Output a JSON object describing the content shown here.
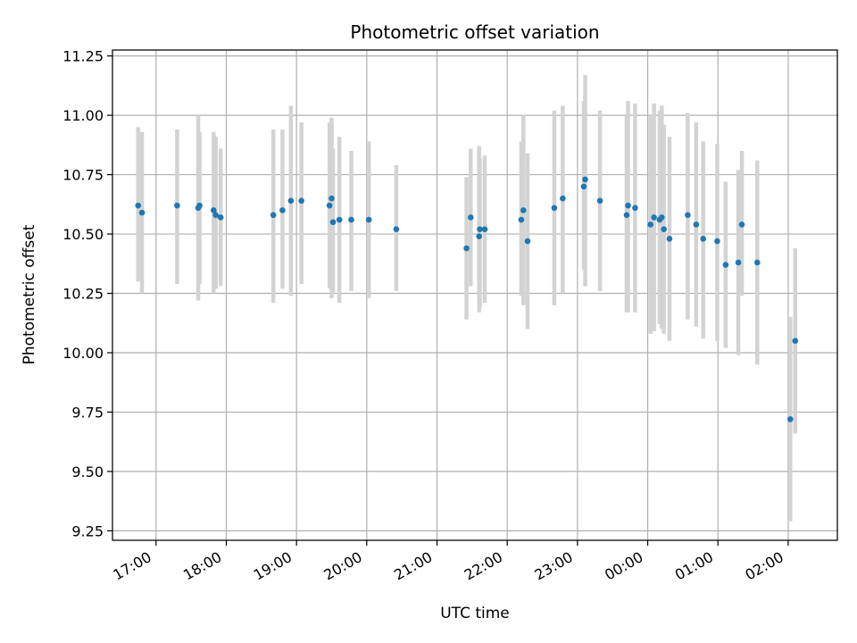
{
  "chart_data": {
    "type": "scatter",
    "title": "Photometric offset variation",
    "xlabel": "UTC time",
    "ylabel": "Photometric offset",
    "grid": true,
    "colors": {
      "point": "#1f77b4",
      "errorbar": "#d3d3d3",
      "grid": "#b0b0b0",
      "axis": "#000000"
    },
    "xlim": [
      16.38,
      26.7
    ],
    "ylim": [
      9.21,
      11.275
    ],
    "x_ticks": [
      17,
      18,
      19,
      20,
      21,
      22,
      23,
      24,
      25,
      26
    ],
    "x_tick_labels": [
      "17:00",
      "18:00",
      "19:00",
      "20:00",
      "21:00",
      "22:00",
      "23:00",
      "00:00",
      "01:00",
      "02:00"
    ],
    "y_ticks": [
      9.25,
      9.5,
      9.75,
      10.0,
      10.25,
      10.5,
      10.75,
      11.0,
      11.25
    ],
    "y_tick_labels": [
      "9.25",
      "9.50",
      "9.75",
      "10.00",
      "10.25",
      "10.50",
      "10.75",
      "11.00",
      "11.25"
    ],
    "series": [
      {
        "name": "offset",
        "x": [
          16.745,
          16.8,
          17.3,
          17.6,
          17.62,
          17.82,
          17.85,
          17.92,
          18.67,
          18.8,
          18.92,
          19.07,
          19.47,
          19.5,
          19.52,
          19.61,
          19.78,
          20.03,
          20.42,
          21.42,
          21.48,
          21.6,
          21.61,
          21.68,
          22.2,
          22.23,
          22.29,
          22.67,
          22.79,
          23.09,
          23.11,
          23.32,
          23.7,
          23.72,
          23.82,
          24.04,
          24.09,
          24.17,
          24.2,
          24.23,
          24.31,
          24.57,
          24.69,
          24.79,
          24.99,
          25.11,
          25.29,
          25.34,
          25.56,
          26.03,
          26.1
        ],
        "y": [
          10.62,
          10.59,
          10.62,
          10.61,
          10.62,
          10.6,
          10.58,
          10.57,
          10.58,
          10.6,
          10.64,
          10.64,
          10.62,
          10.65,
          10.55,
          10.56,
          10.56,
          10.56,
          10.52,
          10.44,
          10.57,
          10.49,
          10.52,
          10.52,
          10.56,
          10.6,
          10.47,
          10.61,
          10.65,
          10.7,
          10.73,
          10.64,
          10.58,
          10.62,
          10.61,
          10.54,
          10.57,
          10.56,
          10.57,
          10.52,
          10.48,
          10.58,
          10.54,
          10.48,
          10.47,
          10.37,
          10.38,
          10.54,
          10.38,
          9.72,
          10.05
        ],
        "err_low": [
          10.3,
          10.25,
          10.29,
          10.22,
          10.29,
          10.25,
          10.27,
          10.28,
          10.21,
          10.27,
          10.24,
          10.29,
          10.27,
          10.23,
          10.25,
          10.21,
          10.26,
          10.23,
          10.26,
          10.14,
          10.28,
          10.17,
          10.19,
          10.21,
          10.24,
          10.2,
          10.1,
          10.2,
          10.25,
          10.35,
          10.28,
          10.26,
          10.17,
          10.17,
          10.17,
          10.08,
          10.09,
          10.12,
          10.1,
          10.08,
          10.05,
          10.14,
          10.11,
          10.06,
          10.05,
          10.02,
          9.99,
          10.24,
          9.95,
          9.29,
          9.66
        ],
        "err_high": [
          10.95,
          10.93,
          10.94,
          11.0,
          10.93,
          10.93,
          10.91,
          10.86,
          10.94,
          10.94,
          11.04,
          10.97,
          10.97,
          10.99,
          10.86,
          10.91,
          10.85,
          10.89,
          10.79,
          10.74,
          10.86,
          10.87,
          10.82,
          10.83,
          10.89,
          11.0,
          10.84,
          11.02,
          11.04,
          11.06,
          11.17,
          11.02,
          11.0,
          11.06,
          11.05,
          11.0,
          11.05,
          11.02,
          11.04,
          10.96,
          10.91,
          11.01,
          10.97,
          10.89,
          10.88,
          10.72,
          10.77,
          10.85,
          10.81,
          10.15,
          10.44
        ]
      }
    ]
  }
}
